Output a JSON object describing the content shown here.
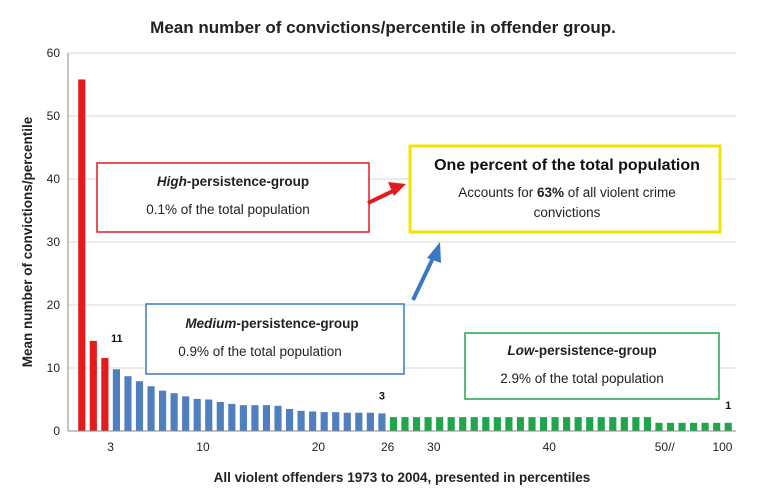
{
  "colors": {
    "high": "#e41a1c",
    "medium": "#4f7fbf",
    "low": "#1fa64a",
    "highlight_border": "#f2e400",
    "grid": "#d9d9d9"
  },
  "chart_data": {
    "type": "bar",
    "title": "Mean number of convictions/percentile in offender group.",
    "xlabel": "All violent offenders 1973 to 2004, presented in percentiles",
    "ylabel": "Mean number of convictions/percentile",
    "ylim": [
      0,
      60
    ],
    "yticks": [
      0,
      10,
      20,
      30,
      40,
      50,
      60
    ],
    "grid": true,
    "xtick_labels": [
      {
        "text": "3",
        "after_index": 2
      },
      {
        "text": "10",
        "after_index": 10
      },
      {
        "text": "20",
        "after_index": 20
      },
      {
        "text": "26",
        "after_index": 26
      },
      {
        "text": "30",
        "after_index": 30
      },
      {
        "text": "40",
        "after_index": 40
      },
      {
        "text": "50//",
        "after_index": 50
      },
      {
        "text": "100",
        "after_index": 55
      }
    ],
    "series": [
      {
        "group": "high",
        "values": [
          55.8,
          14.3,
          11.6
        ]
      },
      {
        "group": "medium",
        "values": [
          9.8,
          8.7,
          7.9,
          7.1,
          6.4,
          6.0,
          5.5,
          5.1,
          5.0,
          4.6,
          4.3,
          4.1,
          4.1,
          4.1,
          4.0,
          3.5,
          3.2,
          3.1,
          3.0,
          3.0,
          2.9,
          2.9,
          2.9,
          2.8
        ]
      },
      {
        "group": "low",
        "values": [
          2.2,
          2.2,
          2.2,
          2.2,
          2.2,
          2.2,
          2.2,
          2.2,
          2.2,
          2.2,
          2.2,
          2.2,
          2.2,
          2.2,
          2.2,
          2.2,
          2.2,
          2.2,
          2.2,
          2.2,
          2.2,
          2.2,
          2.2,
          1.3,
          1.3,
          1.3,
          1.3,
          1.3,
          1.3,
          1.3
        ]
      }
    ],
    "data_labels": [
      {
        "text": "11",
        "bar_index": 2
      },
      {
        "text": "3",
        "bar_index": 26
      },
      {
        "text": "1",
        "bar_index": 56
      }
    ],
    "annotations": {
      "high_box": {
        "line1_italic": "High",
        "line1_rest": "-persistence-group",
        "line2": "0.1% of the  total population"
      },
      "medium_box": {
        "line1_italic": "Medium",
        "line1_rest": "-persistence-group",
        "line2": "0.9% of the total population"
      },
      "low_box": {
        "line1_italic": "Low",
        "line1_rest": "-persistence-group",
        "line2": "2.9% of the total population"
      },
      "highlight_box": {
        "title": "One percent of the total population",
        "line1_pre": "Accounts for ",
        "line1_bold": "63%",
        "line1_post": " of all violent crime",
        "line2": "convictions"
      }
    }
  }
}
